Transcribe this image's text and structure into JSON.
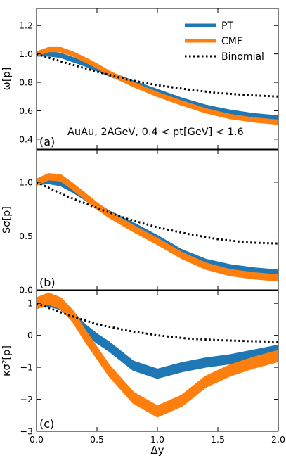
{
  "chart_data": {
    "type": "line",
    "x_label": "Δy",
    "xlim": [
      0.0,
      2.0
    ],
    "x_ticks": [
      "0.0",
      "0.5",
      "1.0",
      "1.5",
      "2.0"
    ],
    "legend": [
      "PT",
      "CMF",
      "Binomial"
    ],
    "legend_position": "top-right",
    "annotation": "AuAu, 2AGeV, 0.4 < pt[GeV] < 1.6",
    "colors": {
      "PT": "#1f77b4",
      "CMF": "#ff7f0e",
      "Binomial": "#000000"
    },
    "panels": [
      {
        "tag": "(a)",
        "ylabel": "ω[p]",
        "ylim": [
          0.33,
          1.32
        ],
        "yticks": [
          "0.4",
          "0.6",
          "0.8",
          "1.0",
          "1.2"
        ],
        "yticks_values": [
          0.4,
          0.6,
          0.8,
          1.0,
          1.2
        ],
        "series": [
          {
            "name": "PT",
            "x": [
              0,
              0.1,
              0.2,
              0.3,
              0.4,
              0.5,
              0.6,
              0.8,
              1.0,
              1.2,
              1.4,
              1.6,
              1.8,
              2.0
            ],
            "y": [
              1.0,
              1.0,
              0.99,
              0.96,
              0.93,
              0.895,
              0.86,
              0.795,
              0.735,
              0.675,
              0.625,
              0.59,
              0.565,
              0.55
            ],
            "band": 0.012
          },
          {
            "name": "CMF",
            "x": [
              0,
              0.1,
              0.2,
              0.3,
              0.4,
              0.5,
              0.6,
              0.8,
              1.0,
              1.2,
              1.4,
              1.6,
              1.8,
              2.0
            ],
            "y": [
              1.0,
              1.03,
              1.03,
              1.0,
              0.96,
              0.915,
              0.865,
              0.785,
              0.715,
              0.655,
              0.6,
              0.56,
              0.535,
              0.52
            ],
            "band": 0.012
          },
          {
            "name": "Binomial",
            "x": [
              0,
              0.25,
              0.5,
              0.75,
              1.0,
              1.25,
              1.5,
              1.75,
              2.0
            ],
            "y": [
              1.0,
              0.935,
              0.875,
              0.82,
              0.78,
              0.75,
              0.725,
              0.71,
              0.7
            ]
          }
        ]
      },
      {
        "tag": "(b)",
        "ylabel": "Sσ[p]",
        "ylim": [
          0.0,
          1.3
        ],
        "yticks": [
          "0.0",
          "0.5",
          "1.0"
        ],
        "yticks_values": [
          0.0,
          0.5,
          1.0
        ],
        "series": [
          {
            "name": "PT",
            "x": [
              0,
              0.1,
              0.2,
              0.3,
              0.4,
              0.5,
              0.6,
              0.8,
              1.0,
              1.2,
              1.4,
              1.6,
              1.8,
              2.0
            ],
            "y": [
              1.0,
              1.01,
              0.99,
              0.93,
              0.86,
              0.78,
              0.71,
              0.6,
              0.48,
              0.35,
              0.26,
              0.21,
              0.18,
              0.16
            ],
            "band": 0.02
          },
          {
            "name": "CMF",
            "x": [
              0,
              0.1,
              0.2,
              0.3,
              0.4,
              0.5,
              0.6,
              0.8,
              1.0,
              1.2,
              1.4,
              1.6,
              1.8,
              2.0
            ],
            "y": [
              1.0,
              1.05,
              1.04,
              0.96,
              0.87,
              0.78,
              0.7,
              0.57,
              0.45,
              0.32,
              0.22,
              0.16,
              0.13,
              0.11
            ],
            "band": 0.025
          },
          {
            "name": "Binomial",
            "x": [
              0,
              0.25,
              0.5,
              0.75,
              1.0,
              1.25,
              1.5,
              1.75,
              2.0
            ],
            "y": [
              1.0,
              0.87,
              0.76,
              0.66,
              0.58,
              0.52,
              0.47,
              0.44,
              0.43
            ]
          }
        ]
      },
      {
        "tag": "(c)",
        "ylabel": "κσ²[p]",
        "ylim": [
          -3.0,
          1.4
        ],
        "yticks": [
          "−3",
          "−2",
          "−1",
          "0",
          "1"
        ],
        "yticks_values": [
          -3,
          -2,
          -1,
          0,
          1
        ],
        "series": [
          {
            "name": "PT",
            "x": [
              0,
              0.1,
              0.2,
              0.3,
              0.4,
              0.5,
              0.6,
              0.8,
              1.0,
              1.2,
              1.4,
              1.6,
              1.8,
              2.0
            ],
            "y": [
              1.0,
              1.05,
              0.95,
              0.6,
              0.2,
              -0.1,
              -0.35,
              -0.95,
              -1.2,
              -1.0,
              -0.85,
              -0.75,
              -0.6,
              -0.45
            ],
            "band": 0.13
          },
          {
            "name": "CMF",
            "x": [
              0,
              0.1,
              0.2,
              0.3,
              0.4,
              0.5,
              0.6,
              0.8,
              1.0,
              1.2,
              1.4,
              1.6,
              1.8,
              2.0
            ],
            "y": [
              1.0,
              1.15,
              1.0,
              0.6,
              0.0,
              -0.55,
              -1.1,
              -1.95,
              -2.38,
              -2.05,
              -1.45,
              -1.1,
              -0.85,
              -0.65
            ],
            "band": 0.16
          },
          {
            "name": "Binomial",
            "x": [
              0,
              0.25,
              0.5,
              0.75,
              1.0,
              1.25,
              1.5,
              1.75,
              2.0
            ],
            "y": [
              1.0,
              0.65,
              0.35,
              0.15,
              0.0,
              -0.1,
              -0.15,
              -0.18,
              -0.2
            ]
          }
        ]
      }
    ]
  }
}
